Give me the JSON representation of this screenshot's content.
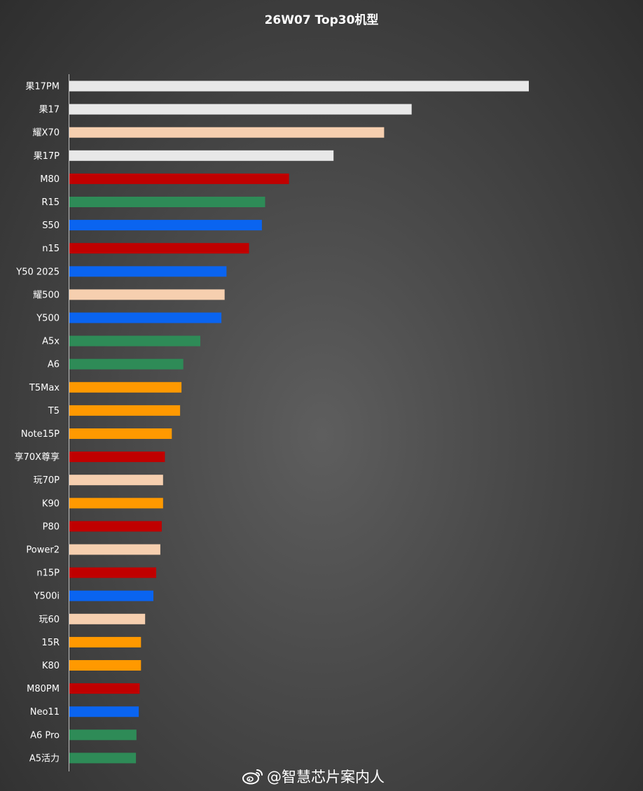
{
  "chart_data": {
    "type": "bar",
    "orientation": "horizontal",
    "title": "26W07 Top30机型",
    "xlabel": "",
    "ylabel": "",
    "grid": false,
    "xlim": [
      0,
      100
    ],
    "categories": [
      "果17PM",
      "果17",
      "耀X70",
      "果17P",
      "M80",
      "R15",
      "S50",
      "n15",
      "Y50 2025",
      "耀500",
      "Y500",
      "A5x",
      "A6",
      "T5Max",
      "T5",
      "Note15P",
      "享70X尊享",
      "玩70P",
      "K90",
      "P80",
      "Power2",
      "n15P",
      "Y500i",
      "玩60",
      "15R",
      "K80",
      "M80PM",
      "Neo11",
      "A6 Pro",
      "A5活力"
    ],
    "values": [
      100,
      74.5,
      68.5,
      57.5,
      47.8,
      42.6,
      41.9,
      39.1,
      34.2,
      33.8,
      33.1,
      28.5,
      24.8,
      24.4,
      24.1,
      22.3,
      20.8,
      20.4,
      20.4,
      20.1,
      19.8,
      18.9,
      18.3,
      16.5,
      15.6,
      15.6,
      15.3,
      15.1,
      14.6,
      14.5
    ],
    "colors": [
      "#e8e8e8",
      "#e8e8e8",
      "#f6cfaf",
      "#e8e8e8",
      "#c00000",
      "#2e8b57",
      "#0a64f0",
      "#c00000",
      "#0a64f0",
      "#f6cfaf",
      "#0a64f0",
      "#2e8b57",
      "#2e8b57",
      "#ff9900",
      "#ff9900",
      "#ff9900",
      "#c00000",
      "#f6cfaf",
      "#ff9900",
      "#c00000",
      "#f6cfaf",
      "#c00000",
      "#0a64f0",
      "#f6cfaf",
      "#ff9900",
      "#ff9900",
      "#c00000",
      "#0a64f0",
      "#2e8b57",
      "#2e8b57"
    ]
  },
  "watermark": {
    "text": "@智慧芯片案内人",
    "icon": "weibo-icon"
  }
}
